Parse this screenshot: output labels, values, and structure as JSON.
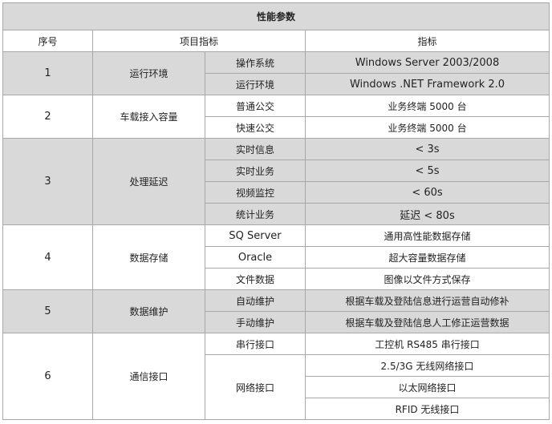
{
  "title": "性能参数",
  "headers": {
    "no": "序号",
    "item": "项目指标",
    "value": "指标"
  },
  "groups": [
    {
      "no": "1",
      "name": "运行环境",
      "rows": [
        {
          "item": "操作系统",
          "value": "Windows Server 2003/2008"
        },
        {
          "item": "运行环境",
          "value": "Windows .NET Framework 2.0"
        }
      ]
    },
    {
      "no": "2",
      "name": "车载接入容量",
      "rows": [
        {
          "item": "普通公交",
          "value": "业务终端 5000 台"
        },
        {
          "item": "快速公交",
          "value": "业务终端 5000 台"
        }
      ]
    },
    {
      "no": "3",
      "name": "处理延迟",
      "rows": [
        {
          "item": "实时信息",
          "value": "< 3s"
        },
        {
          "item": "实时业务",
          "value": "< 5s"
        },
        {
          "item": "视频监控",
          "value": "< 60s"
        },
        {
          "item": "统计业务",
          "value": "延迟 < 80s"
        }
      ]
    },
    {
      "no": "4",
      "name": "数据存储",
      "rows": [
        {
          "item": "SQ Server",
          "value": "通用高性能数据存储"
        },
        {
          "item": "Oracle",
          "value": "超大容量数据存储"
        },
        {
          "item": "文件数据",
          "value": "图像以文件方式保存"
        }
      ]
    },
    {
      "no": "5",
      "name": "数据维护",
      "rows": [
        {
          "item": "自动维护",
          "value": "根据车载及登陆信息进行运营自动修补"
        },
        {
          "item": "手动维护",
          "value": "根据车载及登陆信息人工修正运营数据"
        }
      ]
    },
    {
      "no": "6",
      "name": "通信接口",
      "rows": [
        {
          "item": "串行接口",
          "value": "工控机 RS485 串行接口"
        },
        {
          "item": "网络接口",
          "values": [
            "2.5/3G 无线网络接口",
            "以太网络接口",
            "RFID 无线接口"
          ]
        }
      ]
    }
  ],
  "colors": {
    "shaded_row": "#d9d9d9",
    "border": "#a8a8a8"
  }
}
